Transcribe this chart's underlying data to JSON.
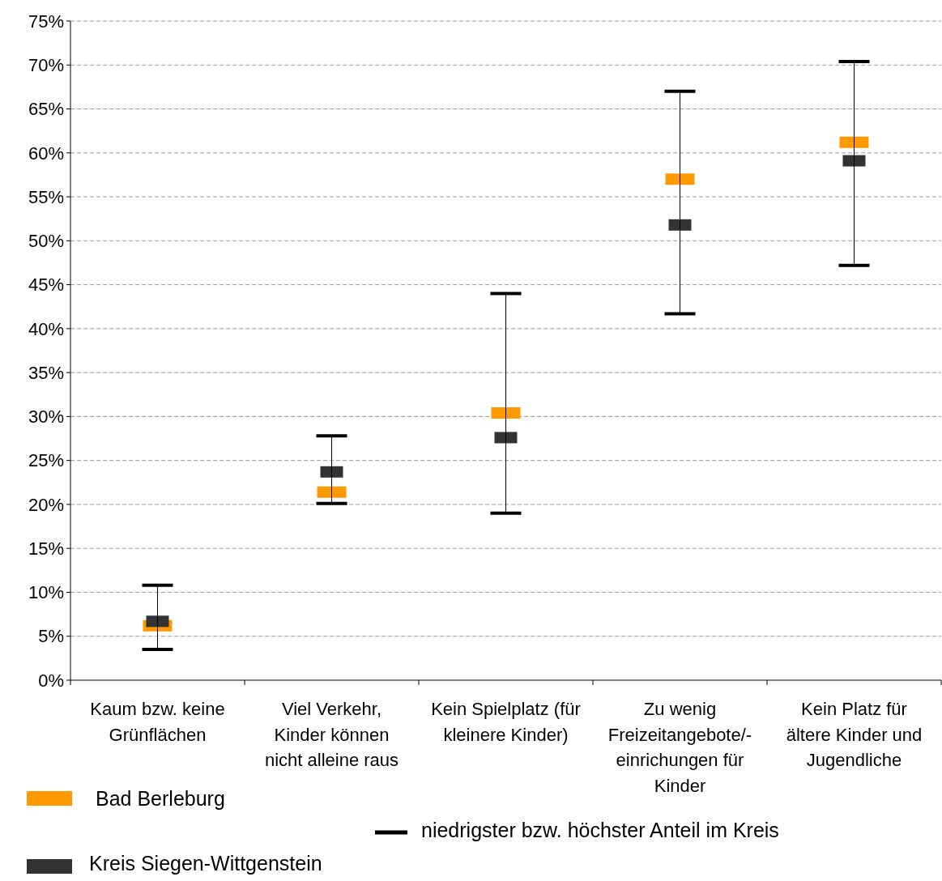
{
  "chart_data": {
    "type": "scatter",
    "categories": [
      "Kaum bzw. keine Grünflächen",
      "Viel Verkehr, Kinder können nicht alleine raus",
      "Kein Spielplatz (für kleinere Kinder)",
      "Zu wenig Freizeitangebote/-einrichungen für Kinder",
      "Kein Platz für ältere Kinder und Jugendliche"
    ],
    "series": [
      {
        "name": "Bad Berleburg",
        "color": "#ff9900",
        "marker": "square",
        "values": [
          6.2,
          21.4,
          30.4,
          57.0,
          61.2
        ]
      },
      {
        "name": "Kreis Siegen-Wittgenstein",
        "color": "#333333",
        "marker": "square",
        "values": [
          6.7,
          23.7,
          27.6,
          51.8,
          59.1
        ],
        "errors": [
          [
            3.5,
            10.8
          ],
          [
            20.1,
            27.8
          ],
          [
            19.0,
            44.0
          ],
          [
            41.7,
            67.0
          ],
          [
            47.2,
            70.4
          ]
        ]
      }
    ],
    "annotations": [
      "niedrigster bzw. höchster Anteil im Kreis"
    ],
    "ylim": [
      0,
      75
    ],
    "yticks": [
      {
        "value": 0,
        "label": "0%"
      },
      {
        "value": 5,
        "label": "5%"
      },
      {
        "value": 10,
        "label": "10%"
      },
      {
        "value": 15,
        "label": "15%"
      },
      {
        "value": 20,
        "label": "20%"
      },
      {
        "value": 25,
        "label": "25%"
      },
      {
        "value": 30,
        "label": "30%"
      },
      {
        "value": 35,
        "label": "35%"
      },
      {
        "value": 40,
        "label": "40%"
      },
      {
        "value": 45,
        "label": "45%"
      },
      {
        "value": 50,
        "label": "50%"
      },
      {
        "value": 55,
        "label": "55%"
      },
      {
        "value": 60,
        "label": "60%"
      },
      {
        "value": 65,
        "label": "65%"
      },
      {
        "value": 70,
        "label": "70%"
      },
      {
        "value": 75,
        "label": "75%"
      }
    ],
    "grid": "y",
    "legend": "bottom left"
  }
}
